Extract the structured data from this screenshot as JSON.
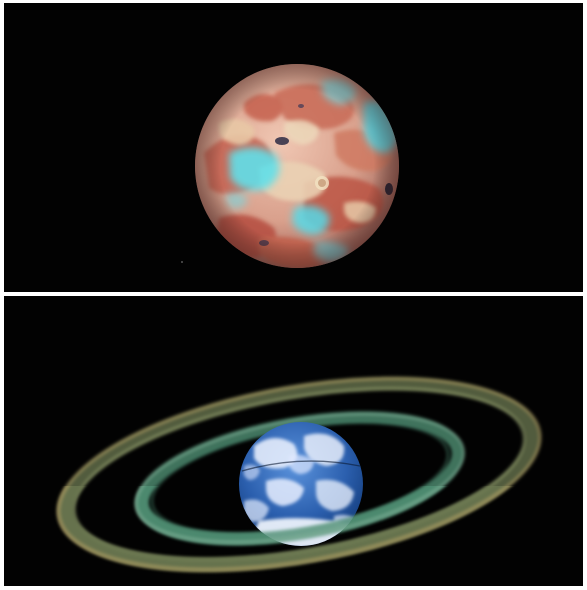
{
  "scenes": [
    {
      "id": "top",
      "planet": {
        "kind": "desert-planet",
        "colors": {
          "base": "#d9a691",
          "mid": "#c9735f",
          "dark": "#b24a3c",
          "sand": "#e6c9a8",
          "cyan": "#52dce6",
          "crater": "#2b2a44"
        }
      }
    },
    {
      "id": "bottom",
      "planet": {
        "kind": "ocean-planet",
        "colors": {
          "ocean": "#1e4f9c",
          "ocean_light": "#4a86d2",
          "cloud": "#f2f6ff"
        }
      },
      "rings": {
        "colors": {
          "outer": "#8a8e5e",
          "outer_edge": "#b3a36a",
          "inner": "#4f8f73",
          "inner_light": "#7fb59a"
        }
      }
    }
  ],
  "background_color": "#020202"
}
